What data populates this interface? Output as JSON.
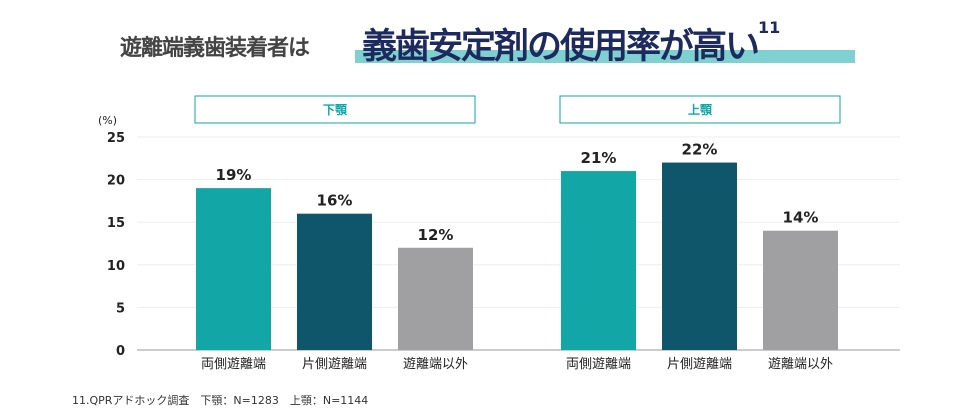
{
  "header": {
    "lead": "遊離端義歯装着者は",
    "highlight": "義歯安定剤の使用率が高い",
    "footnote_ref": "11"
  },
  "chart_data": {
    "type": "bar",
    "ylabel": "(%)",
    "ylim": [
      0,
      25
    ],
    "yticks": [
      0,
      5,
      10,
      15,
      20,
      25
    ],
    "grid": true,
    "categories": [
      "両側遊離端",
      "片側遊離端",
      "遊離端以外"
    ],
    "panels": [
      {
        "title": "下顎",
        "values": [
          19,
          16,
          12
        ],
        "labels": [
          "19%",
          "16%",
          "12%"
        ]
      },
      {
        "title": "上顎",
        "values": [
          21,
          22,
          14
        ],
        "labels": [
          "21%",
          "22%",
          "14%"
        ]
      }
    ],
    "colors": [
      "#12a6a6",
      "#10566b",
      "#a0a0a2"
    ],
    "title_color": "#12a6a6"
  },
  "footnote": "11.QPRアドホック調査　下顎：N=1283　上顎：N=1144"
}
